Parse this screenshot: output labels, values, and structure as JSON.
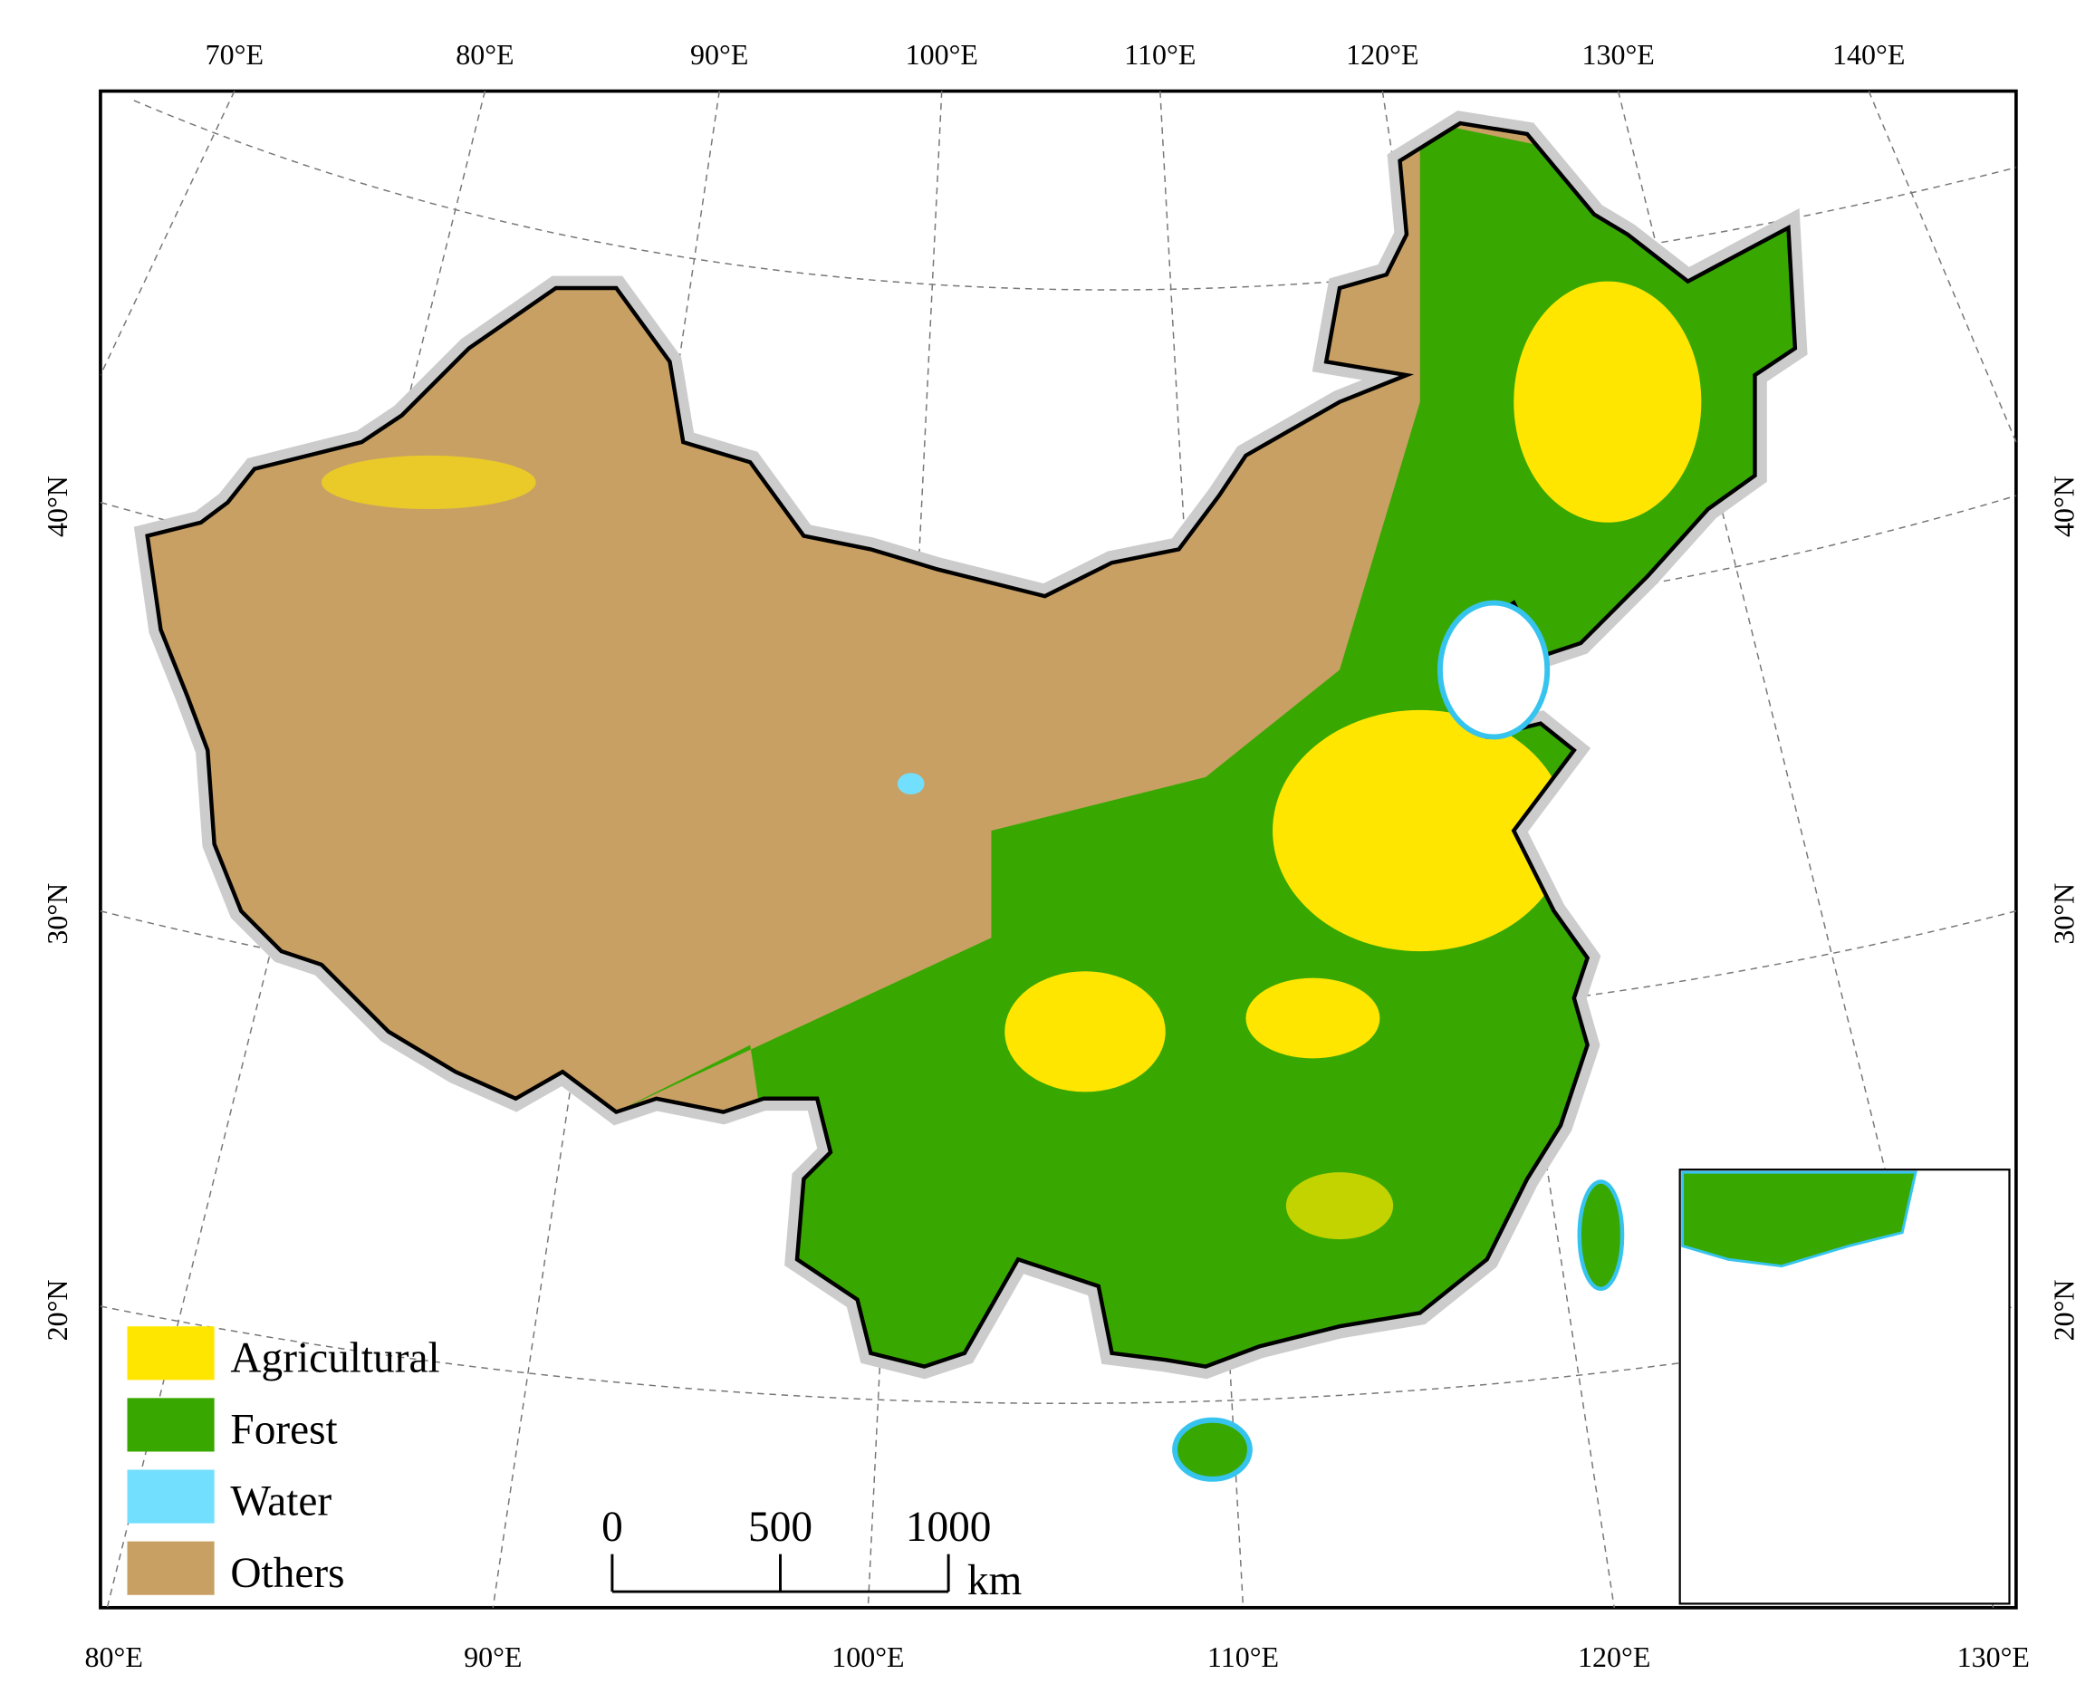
{
  "top_labels": [
    "70°E",
    "80°E",
    "90°E",
    "100°E",
    "110°E",
    "120°E",
    "130°E",
    "140°E"
  ],
  "bottom_labels": [
    "80°E",
    "90°E",
    "100°E",
    "110°E",
    "120°E",
    "130°E"
  ],
  "left_labels": [
    "40°N",
    "30°N",
    "20°N"
  ],
  "right_labels": [
    "40°N",
    "30°N",
    "20°N"
  ],
  "legend": [
    {
      "label": "Agricultural",
      "color": "#ffe600"
    },
    {
      "label": "Forest",
      "color": "#38a800"
    },
    {
      "label": "Water",
      "color": "#73dfff"
    },
    {
      "label": "Others",
      "color": "#c8a064"
    }
  ],
  "scale_bar": {
    "ticks": [
      0,
      500,
      1000
    ],
    "unit": "km"
  }
}
